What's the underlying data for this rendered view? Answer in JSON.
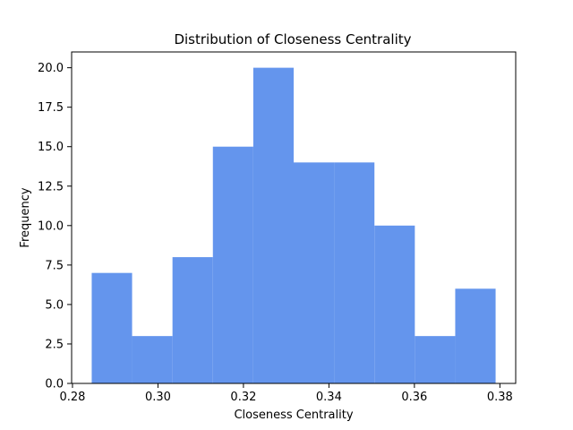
{
  "chart_data": {
    "type": "bar",
    "title": "Distribution of Closeness Centrality",
    "xlabel": "Closeness Centrality",
    "ylabel": "Frequency",
    "bin_edges": [
      0.2845,
      0.29395,
      0.3034,
      0.31285,
      0.3223,
      0.33175,
      0.3412,
      0.35065,
      0.3601,
      0.36955,
      0.379
    ],
    "values": [
      7,
      3,
      8,
      15,
      20,
      14,
      14,
      10,
      3,
      6
    ],
    "xlim": [
      0.2798,
      0.3837
    ],
    "ylim": [
      0,
      21
    ],
    "xticks": [
      0.28,
      0.3,
      0.32,
      0.34,
      0.36,
      0.38
    ],
    "xtick_labels": [
      "0.28",
      "0.30",
      "0.32",
      "0.34",
      "0.36",
      "0.38"
    ],
    "yticks": [
      0,
      2.5,
      5,
      7.5,
      10,
      12.5,
      15,
      17.5,
      20
    ],
    "ytick_labels": [
      "0.0",
      "2.5",
      "5.0",
      "7.5",
      "10.0",
      "12.5",
      "15.0",
      "17.5",
      "20.0"
    ],
    "bar_color": "#6495ed",
    "grid": false
  }
}
